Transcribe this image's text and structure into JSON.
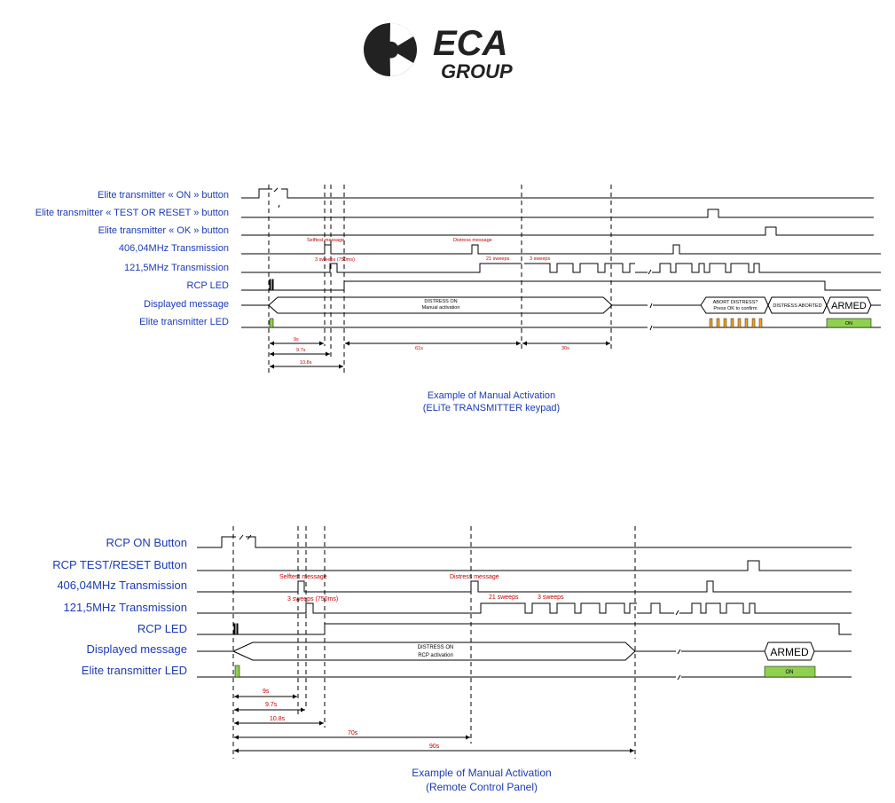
{
  "logo": {
    "line1": "ECA",
    "line2": "GROUP"
  },
  "diagram1": {
    "signals": [
      "Elite transmitter « ON » button",
      "Elite transmitter « TEST OR RESET » button",
      "Elite transmitter « OK » button",
      "406,04MHz Transmission",
      "121,5MHz Transmission",
      "RCP LED",
      "Displayed message",
      "Elite transmitter LED"
    ],
    "notes": {
      "selftest": "Selftest message",
      "distress": "Distress message",
      "sweeps3a": "3 sweeps (750ms)",
      "sweeps21": "21 sweeps",
      "sweeps3b": "3 sweeps"
    },
    "messages": {
      "distress_l1": "DISTRESS ON",
      "distress_l2": "Manual activation",
      "abort_l1": "ABORT DISTRESS?",
      "abort_l2": "Press OK to confirm",
      "aborted": "DISTRESS ABORTED",
      "armed": "ARMED",
      "led_on": "ON"
    },
    "timings": [
      "9s",
      "9.7s",
      "10.8s",
      "61s",
      "30s"
    ],
    "caption_l1": "Example of Manual Activation",
    "caption_l2": "(ELiTe TRANSMITTER keypad)"
  },
  "diagram2": {
    "signals": [
      "RCP ON Button",
      "RCP TEST/RESET Button",
      "406,04MHz Transmission",
      "121,5MHz Transmission",
      "RCP LED",
      "Displayed message",
      "Elite transmitter LED"
    ],
    "notes": {
      "selftest": "Selftest message",
      "distress": "Distress message",
      "sweeps3a": "3 sweeps (750ms)",
      "sweeps21": "21 sweeps",
      "sweeps3b": "3 sweeps"
    },
    "messages": {
      "distress_l1": "DISTRESS ON",
      "distress_l2": "RCP activation",
      "armed": "ARMED",
      "led_on": "ON"
    },
    "timings": [
      "9s",
      "9.7s",
      "10.8s",
      "70s",
      "90s"
    ],
    "caption_l1": "Example of Manual Activation",
    "caption_l2": "(Remote Control Panel)"
  },
  "colors": {
    "label": "#1a3cb8",
    "note": "#c00000",
    "led_green": "#8fd14f",
    "led_orange": "#f0a020"
  }
}
